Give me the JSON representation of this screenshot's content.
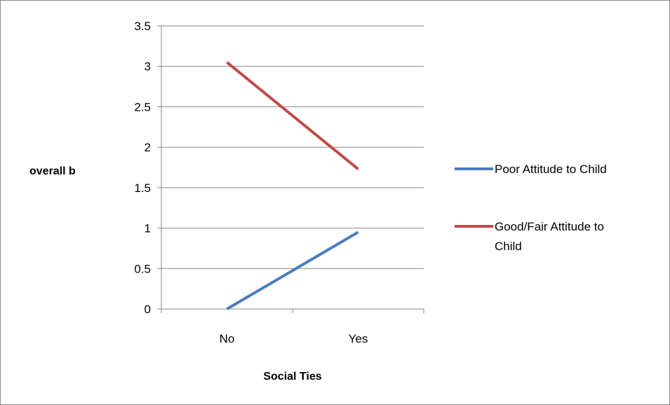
{
  "chart_data": {
    "type": "line",
    "title": "",
    "xlabel": "Social Ties",
    "ylabel": "overall b",
    "categories": [
      "No",
      "Yes"
    ],
    "ylim": [
      0,
      3.5
    ],
    "ytick_step": 0.5,
    "yticks": [
      "0",
      "0.5",
      "1",
      "1.5",
      "2",
      "2.5",
      "3",
      "3.5"
    ],
    "grid": true,
    "legend_position": "right",
    "series": [
      {
        "name": "Poor Attitude to Child",
        "values": [
          0,
          0.95
        ],
        "color": "#4a7ebb"
      },
      {
        "name": "Good/Fair Attitude to Child",
        "values": [
          3.05,
          1.73
        ],
        "color": "#be4b48"
      }
    ]
  }
}
